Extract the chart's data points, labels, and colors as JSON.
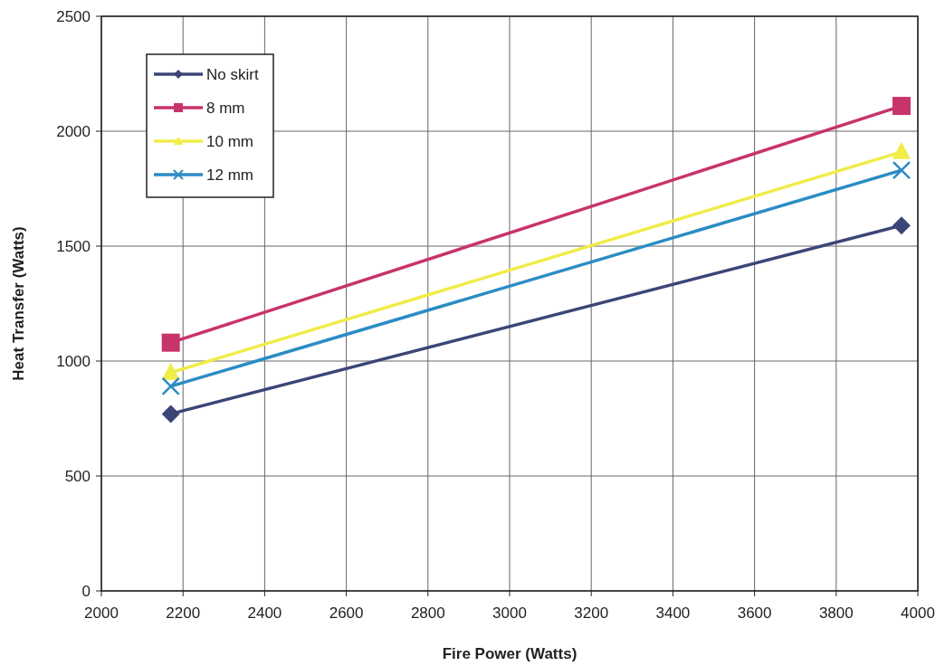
{
  "chart_data": {
    "type": "line",
    "xlabel": "Fire Power (Watts)",
    "ylabel": "Heat Transfer (Watts)",
    "xlim": [
      2000,
      4000
    ],
    "xticks": [
      2000,
      2200,
      2400,
      2600,
      2800,
      3000,
      3200,
      3400,
      3600,
      3800,
      4000
    ],
    "ylim": [
      0,
      2500
    ],
    "yticks": [
      0,
      500,
      1000,
      1500,
      2000,
      2500
    ],
    "grid": true,
    "legend": "top left",
    "line_style": "solid",
    "x": [
      2170,
      3960
    ],
    "series": [
      {
        "name": "No skirt",
        "color": "#3b4577",
        "marker": "diamond",
        "values": [
          770,
          1590
        ]
      },
      {
        "name": "8 mm",
        "color": "#c8336b",
        "marker": "square",
        "values": [
          1080,
          2110
        ]
      },
      {
        "name": "10 mm",
        "color": "#f0ec48",
        "marker": "triangle",
        "values": [
          950,
          1910
        ]
      },
      {
        "name": "12 mm",
        "color": "#2b8cc4",
        "marker": "cross",
        "values": [
          890,
          1830
        ]
      }
    ]
  }
}
